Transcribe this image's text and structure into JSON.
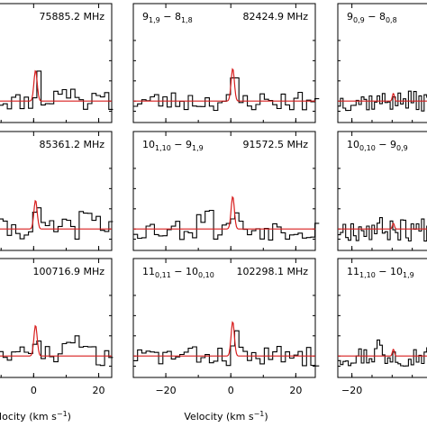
{
  "chart_data": {
    "type": "line",
    "xlabel_text": "Velocity (km s",
    "xlabel_sup": "−1",
    "xlabel_close": ")",
    "xlabel_left_visible": "locity (km s",
    "columns": [
      {
        "xlim": [
          -12,
          24
        ],
        "ticks": [
          0,
          20
        ],
        "tick_labels": [
          "0",
          "20"
        ]
      },
      {
        "xlim": [
          -30,
          26
        ],
        "ticks": [
          -20,
          0,
          20
        ],
        "tick_labels": [
          "−20",
          "0",
          "20"
        ]
      },
      {
        "xlim": [
          -27,
          20
        ],
        "ticks": [
          -20
        ],
        "tick_labels": [
          "−20"
        ]
      }
    ],
    "panels": [
      {
        "id": "p00",
        "col": 0,
        "row": 0,
        "freq": "75885.2 MHz",
        "trans": null,
        "seed": 11,
        "peak": 3.2,
        "noise": 0.9,
        "extra": [
          [
            10,
            1.1,
            4
          ]
        ]
      },
      {
        "id": "p01",
        "col": 1,
        "row": 0,
        "freq": "82424.9 MHz",
        "trans": {
          "a": "9",
          "sa": "1,9",
          "b": "8",
          "sb": "1,8"
        },
        "seed": 23,
        "peak": 3.4,
        "noise": 1.0,
        "extra": []
      },
      {
        "id": "p02",
        "col": 2,
        "row": 0,
        "freq": "",
        "trans": {
          "a": "9",
          "sa": "0,9",
          "b": "8",
          "sb": "0,8"
        },
        "seed": 37,
        "peak": 0.8,
        "noise": 1.0,
        "extra": []
      },
      {
        "id": "p10",
        "col": 0,
        "row": 1,
        "freq": "85361.2 MHz",
        "trans": null,
        "seed": 41,
        "peak": 3.0,
        "noise": 1.0,
        "extra": [
          [
            17,
            1.2,
            3
          ]
        ]
      },
      {
        "id": "p11",
        "col": 1,
        "row": 1,
        "freq": "91572.5 MHz",
        "trans": {
          "a": "10",
          "sa": "1,10",
          "b": "9",
          "sb": "1,9"
        },
        "seed": 53,
        "peak": 3.4,
        "noise": 1.1,
        "extra": [
          [
            -8,
            2.2,
            2.5
          ]
        ]
      },
      {
        "id": "p12",
        "col": 2,
        "row": 1,
        "freq": "",
        "trans": {
          "a": "10",
          "sa": "0,10",
          "b": "9",
          "sb": "0,9"
        },
        "seed": 67,
        "peak": 0.6,
        "noise": 1.2,
        "extra": []
      },
      {
        "id": "p20",
        "col": 0,
        "row": 2,
        "freq": "100716.9 MHz",
        "trans": null,
        "seed": 71,
        "peak": 3.2,
        "noise": 1.0,
        "extra": [
          [
            12,
            1.4,
            4
          ]
        ]
      },
      {
        "id": "p21",
        "col": 1,
        "row": 2,
        "freq": "102298.1 MHz",
        "trans": {
          "a": "11",
          "sa": "0,11",
          "b": "10",
          "sb": "0,10"
        },
        "seed": 83,
        "peak": 3.6,
        "noise": 1.0,
        "extra": []
      },
      {
        "id": "p22",
        "col": 2,
        "row": 2,
        "freq": "",
        "trans": {
          "a": "11",
          "sa": "1,10",
          "b": "10",
          "sb": "1,9"
        },
        "seed": 97,
        "peak": 0.7,
        "noise": 1.0,
        "extra": [
          [
            -7,
            1.6,
            2
          ]
        ]
      }
    ]
  }
}
